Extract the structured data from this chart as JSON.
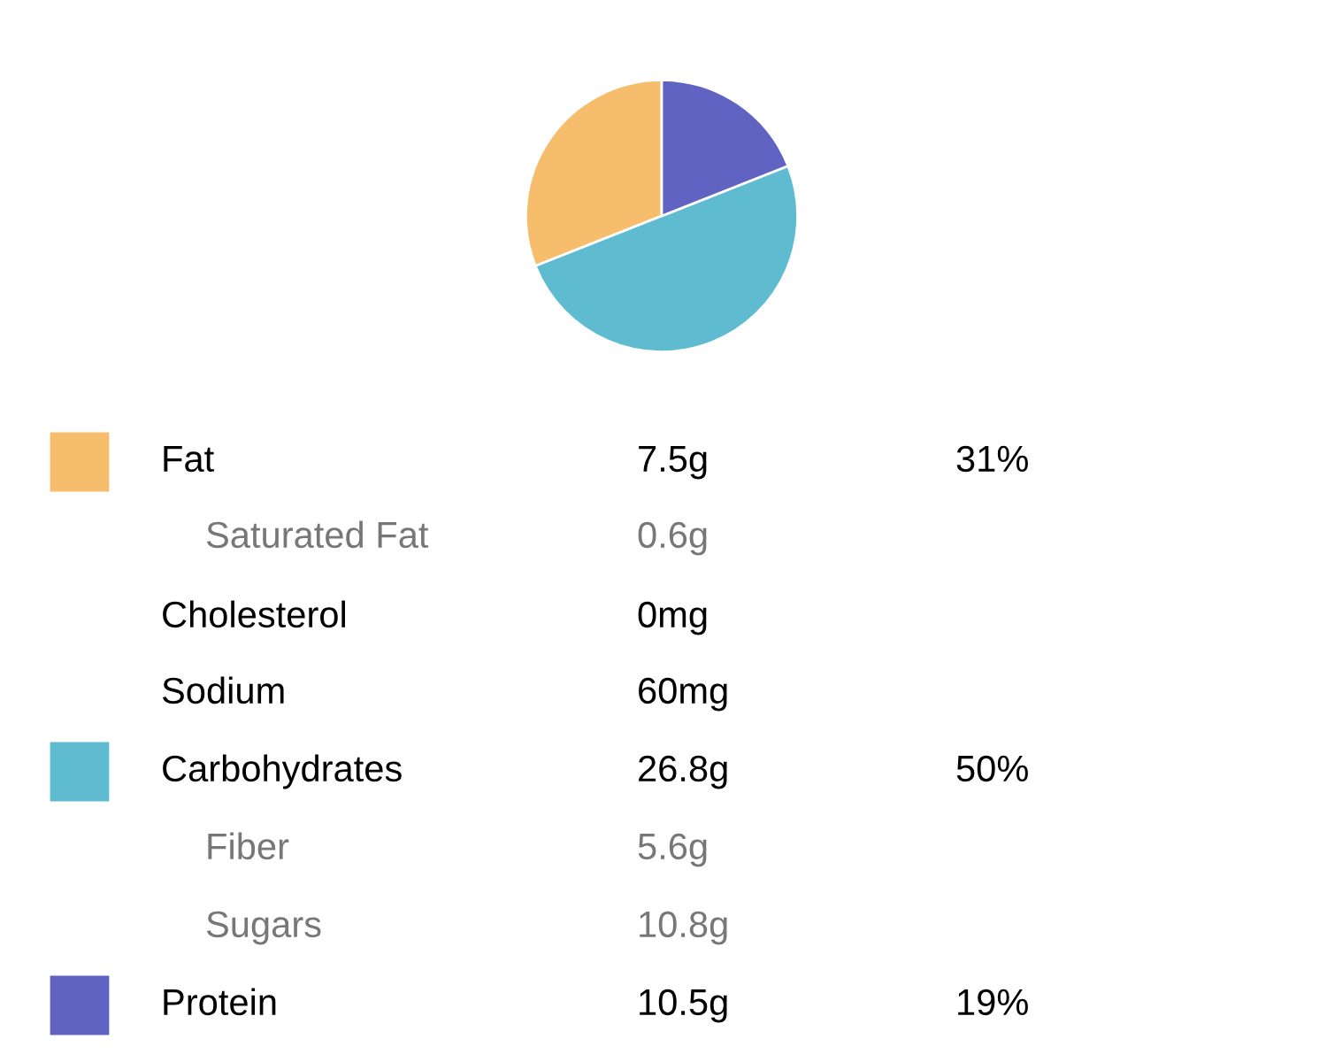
{
  "chart_data": {
    "type": "pie",
    "categories": [
      "Fat",
      "Carbohydrates",
      "Protein"
    ],
    "values": [
      31,
      50,
      19
    ],
    "colors": [
      "#f6be6c",
      "#5fbcd0",
      "#6063c2"
    ],
    "value_labels": [
      "31%",
      "50%",
      "19%"
    ],
    "legend": "bottom",
    "annotations": [
      "7.5g",
      "Saturated Fat",
      "0.6g",
      "Cholesterol",
      "0mg",
      "Sodium",
      "60mg",
      "26.8g",
      "Fiber",
      "5.6g",
      "Sugars",
      "10.8g",
      "10.5g"
    ]
  }
}
